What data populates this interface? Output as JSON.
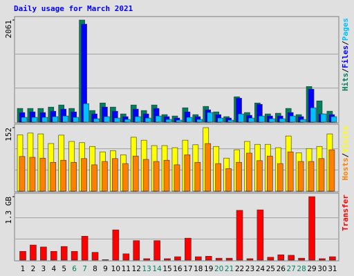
{
  "chart_data": [
    {
      "type": "bar",
      "title": "Daily usage for March 2021",
      "ylim": [
        0,
        2061
      ],
      "yticks": [
        2061
      ],
      "separator": "/",
      "series": [
        {
          "name": "Hits",
          "color": "#00805c",
          "values": [
            277,
            277,
            277,
            304,
            346,
            277,
            2061,
            235,
            387,
            304,
            166,
            346,
            235,
            346,
            152,
            124,
            290,
            152,
            318,
            207,
            111,
            512,
            194,
            387,
            166,
            180,
            277,
            152,
            719,
            429,
            221
          ]
        },
        {
          "name": "Files",
          "color": "#0000ff",
          "values": [
            194,
            207,
            194,
            221,
            263,
            207,
            1978,
            166,
            304,
            221,
            111,
            263,
            166,
            277,
            111,
            83,
            207,
            111,
            249,
            152,
            83,
            484,
            138,
            360,
            124,
            124,
            194,
            111,
            664,
            166,
            152
          ]
        },
        {
          "name": "Pages",
          "color": "#00c0ff",
          "values": [
            97,
            97,
            97,
            111,
            124,
            97,
            373,
            69,
            111,
            83,
            55,
            111,
            83,
            124,
            55,
            41,
            97,
            55,
            194,
            83,
            41,
            166,
            83,
            124,
            69,
            69,
            124,
            55,
            290,
            166,
            111
          ]
        }
      ]
    },
    {
      "type": "bar",
      "ylim": [
        0,
        152
      ],
      "yticks": [
        152
      ],
      "separator": "/",
      "legend_reverse": true,
      "series": [
        {
          "name": "Visits",
          "color": "#ffff00",
          "values": [
            135,
            139,
            137,
            114,
            134,
            119,
            116,
            107,
            94,
            97,
            87,
            129,
            122,
            109,
            109,
            104,
            122,
            111,
            152,
            107,
            79,
            99,
            119,
            112,
            112,
            104,
            132,
            92,
            102,
            107,
            137
          ]
        },
        {
          "name": "Hosts",
          "color": "#ff8000",
          "values": [
            83,
            81,
            79,
            69,
            74,
            69,
            78,
            63,
            71,
            78,
            66,
            84,
            76,
            71,
            74,
            63,
            87,
            69,
            114,
            66,
            54,
            69,
            91,
            73,
            84,
            66,
            94,
            71,
            71,
            78,
            99
          ]
        }
      ]
    },
    {
      "type": "bar",
      "ylim": [
        0,
        1.3
      ],
      "yticks": [
        {
          "value": 1.3,
          "label": "1.3 GB"
        }
      ],
      "categories": [
        "1",
        "2",
        "3",
        "4",
        "5",
        "6",
        "7",
        "8",
        "9",
        "10",
        "11",
        "12",
        "13",
        "14",
        "15",
        "16",
        "17",
        "18",
        "19",
        "20",
        "21",
        "22",
        "23",
        "24",
        "25",
        "26",
        "27",
        "28",
        "29",
        "30",
        "31"
      ],
      "category_colors": [
        "#000000",
        "#000000",
        "#000000",
        "#000000",
        "#000000",
        "#008060",
        "#008060",
        "#000000",
        "#000000",
        "#000000",
        "#000000",
        "#000000",
        "#008060",
        "#008060",
        "#000000",
        "#000000",
        "#000000",
        "#000000",
        "#000000",
        "#008060",
        "#008060",
        "#000000",
        "#000000",
        "#000000",
        "#000000",
        "#000000",
        "#008060",
        "#008060",
        "#000000",
        "#000000",
        "#000000"
      ],
      "series": [
        {
          "name": "Transfer",
          "color": "#ff0000",
          "values": [
            0.18,
            0.31,
            0.27,
            0.18,
            0.28,
            0.18,
            0.49,
            0.16,
            0.01,
            0.62,
            0.13,
            0.4,
            0.03,
            0.4,
            0.03,
            0.07,
            0.45,
            0.07,
            0.08,
            0.04,
            0.04,
            1.02,
            0.03,
            1.03,
            0.06,
            0.11,
            0.1,
            0.04,
            1.3,
            0.03,
            0.07
          ]
        }
      ]
    }
  ]
}
